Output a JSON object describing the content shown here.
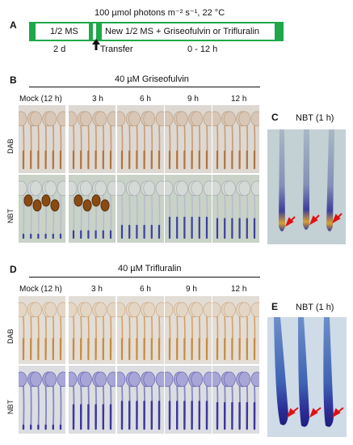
{
  "panelA": {
    "letter": "A",
    "condition": "100 µmol photons m⁻² s⁻¹, 22 °C",
    "stage1": "1/2 MS",
    "stage2": "New 1/2 MS + Griseofulvin or Trifluralin",
    "dur1": "2 d",
    "transfer": "Transfer",
    "dur2": "0 - 12 h"
  },
  "panelB": {
    "letter": "B",
    "treatment": "40 µM Griseofulvin",
    "columns": [
      "Mock (12 h)",
      "3 h",
      "6 h",
      "9 h",
      "12 h"
    ],
    "rows": [
      "DAB",
      "NBT"
    ]
  },
  "panelC": {
    "letter": "C",
    "title": "NBT (1 h)"
  },
  "panelD": {
    "letter": "D",
    "treatment": "40 µM Trifluralin",
    "columns": [
      "Mock (12 h)",
      "3 h",
      "6 h",
      "9 h",
      "12 h"
    ],
    "rows": [
      "DAB",
      "NBT"
    ]
  },
  "panelE": {
    "letter": "E",
    "title": "NBT (1 h)"
  },
  "colors": {
    "green": "#1fa84a",
    "dab_bg": "#ddd8d2",
    "nbt_bg_b": "#c8d2c6",
    "nbt_bg_d": "#dcdde0",
    "brown": "#b4733a",
    "blue": "#3b3fa0",
    "arrow": "#e01010"
  }
}
